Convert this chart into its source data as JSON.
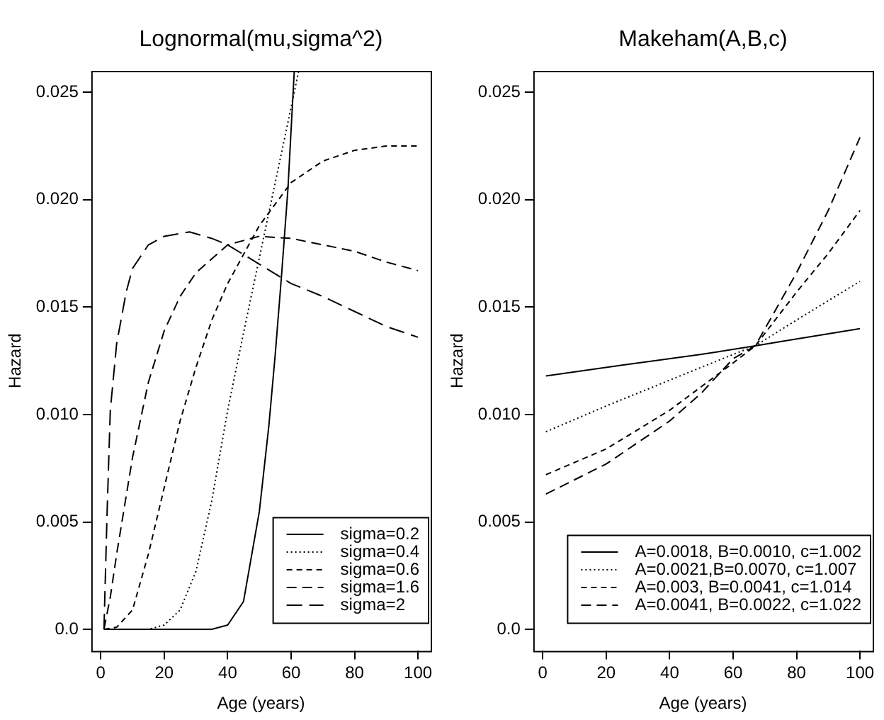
{
  "chart_data": [
    {
      "type": "line",
      "title": "Lognormal(mu,sigma^2)",
      "xlabel": "Age (years)",
      "ylabel": "Hazard",
      "xlim": [
        -3,
        104
      ],
      "xticks": [
        0,
        20,
        40,
        60,
        80,
        100
      ],
      "ylim": [
        -0.001,
        0.026
      ],
      "yticks": [
        {
          "value": 0,
          "label": "0.0"
        },
        0.005,
        {
          "value": 0.01,
          "label": "0.010"
        },
        0.015,
        {
          "value": 0.02,
          "label": "0.020"
        },
        0.025
      ],
      "grid": false,
      "legend": "bottom right",
      "series": [
        {
          "name": "sigma=0.2",
          "color": "#000000",
          "line_style": "solid",
          "x": [
            1,
            10,
            20,
            30,
            35,
            40,
            45,
            50,
            53,
            55,
            57,
            59,
            61
          ],
          "values": [
            0,
            0,
            0,
            0,
            0,
            0.0002,
            0.0013,
            0.0055,
            0.0095,
            0.0128,
            0.0165,
            0.0205,
            0.026
          ]
        },
        {
          "name": "sigma=0.4",
          "color": "#000000",
          "line_style": "dotted",
          "x": [
            1,
            10,
            15,
            20,
            25,
            30,
            35,
            40,
            45,
            50,
            55,
            60,
            62.4
          ],
          "values": [
            0,
            0,
            0,
            0.0002,
            0.0009,
            0.0027,
            0.006,
            0.0102,
            0.0138,
            0.0173,
            0.0208,
            0.0243,
            0.026
          ]
        },
        {
          "name": "sigma=0.6",
          "color": "#000000",
          "line_style": "dashed",
          "x": [
            1,
            5,
            10,
            15,
            20,
            25,
            30,
            35,
            40,
            50,
            60,
            70,
            80,
            90,
            100
          ],
          "values": [
            0,
            0.0001,
            0.0009,
            0.0035,
            0.0066,
            0.0097,
            0.0122,
            0.0144,
            0.0161,
            0.0188,
            0.0208,
            0.0218,
            0.0223,
            0.0225,
            0.0225
          ]
        },
        {
          "name": "sigma=1.6",
          "color": "#000000",
          "line_style": "dashed",
          "x": [
            1,
            3,
            5,
            10,
            15,
            20,
            25,
            30,
            40,
            50,
            60,
            70,
            80,
            90,
            100
          ],
          "values": [
            0,
            0.0015,
            0.0035,
            0.008,
            0.0115,
            0.0139,
            0.0155,
            0.0166,
            0.0179,
            0.0183,
            0.0182,
            0.0179,
            0.0176,
            0.0171,
            0.0167
          ]
        },
        {
          "name": "sigma=2",
          "color": "#000000",
          "line_style": "dashed",
          "x": [
            1,
            2,
            3,
            5,
            8,
            10,
            15,
            20,
            28,
            35,
            40,
            50,
            60,
            70,
            80,
            90,
            100
          ],
          "values": [
            0,
            0.0055,
            0.0102,
            0.0133,
            0.0157,
            0.0168,
            0.0179,
            0.0183,
            0.0185,
            0.0182,
            0.0179,
            0.017,
            0.0161,
            0.0155,
            0.0148,
            0.0141,
            0.0136
          ]
        }
      ]
    },
    {
      "type": "line",
      "title": "Makeham(A,B,c)",
      "xlabel": "Age (years)",
      "ylabel": "Hazard",
      "xlim": [
        -3,
        104
      ],
      "xticks": [
        0,
        20,
        40,
        60,
        80,
        100
      ],
      "ylim": [
        -0.001,
        0.026
      ],
      "yticks": [
        {
          "value": 0,
          "label": "0.0"
        },
        0.005,
        {
          "value": 0.01,
          "label": "0.010"
        },
        0.015,
        {
          "value": 0.02,
          "label": "0.020"
        },
        0.025
      ],
      "grid": false,
      "legend": "bottom right",
      "series": [
        {
          "name": "A=0.0018, B=0.0010, c=1.002",
          "color": "#000000",
          "line_style": "solid",
          "x": [
            1,
            25,
            50,
            67,
            75,
            100
          ],
          "values": [
            0.0118,
            0.0123,
            0.0128,
            0.0132,
            0.0134,
            0.014
          ]
        },
        {
          "name": "A=0.0021,B=0.0070, c=1.007",
          "color": "#000000",
          "line_style": "dotted",
          "x": [
            1,
            20,
            40,
            60,
            67,
            80,
            100
          ],
          "values": [
            0.0092,
            0.0104,
            0.0116,
            0.0128,
            0.0132,
            0.0144,
            0.0162
          ]
        },
        {
          "name": "A=0.003, B=0.0041, c=1.014",
          "color": "#000000",
          "line_style": "dashed",
          "x": [
            1,
            20,
            40,
            60,
            67,
            80,
            90,
            100
          ],
          "values": [
            0.0072,
            0.0084,
            0.0102,
            0.0124,
            0.0132,
            0.0157,
            0.0175,
            0.0195
          ]
        },
        {
          "name": "A=0.0041, B=0.0022, c=1.022",
          "color": "#000000",
          "line_style": "dashed",
          "x": [
            1,
            20,
            40,
            50,
            60,
            67,
            80,
            90,
            100
          ],
          "values": [
            0.0063,
            0.0077,
            0.0097,
            0.011,
            0.0126,
            0.0132,
            0.0166,
            0.0195,
            0.0229
          ]
        }
      ]
    }
  ]
}
